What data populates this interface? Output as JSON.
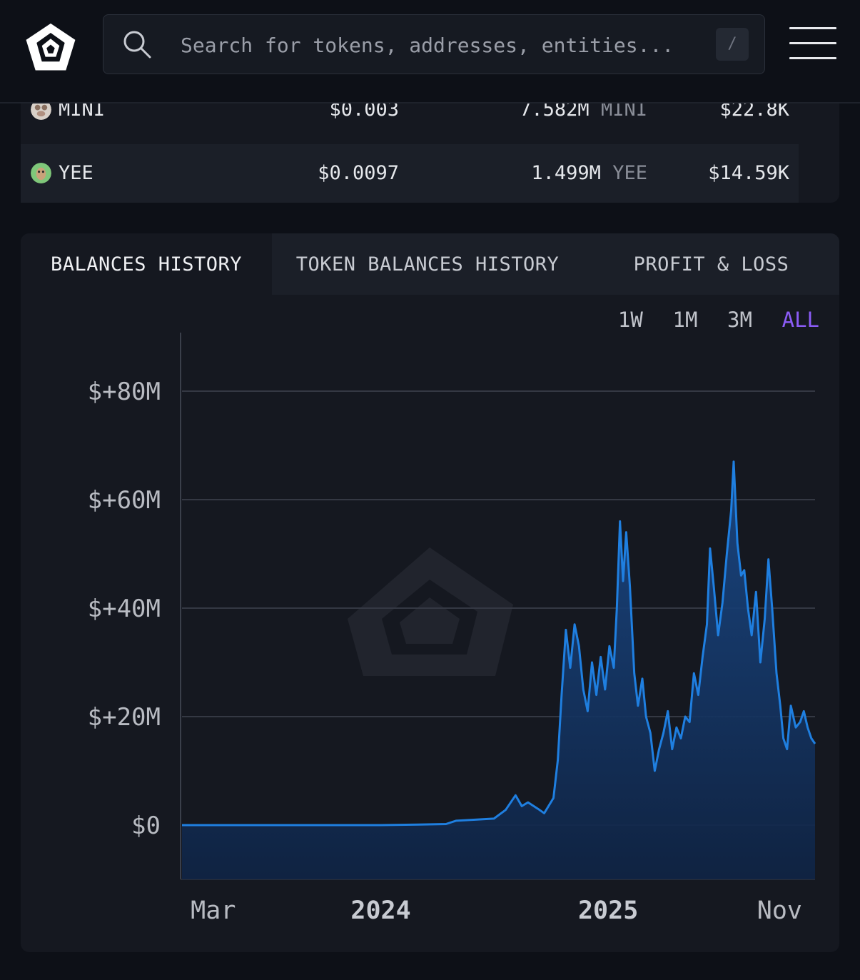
{
  "header": {
    "logo": "arkham-logo",
    "search_placeholder": "Search for tokens, addresses, entities...",
    "search_shortcut": "/",
    "menu_icon": "hamburger-menu-icon"
  },
  "tokens": [
    {
      "symbol": "MINI",
      "price": "$0.003",
      "quantity": "7.582M",
      "unit": "MINI",
      "value": "$22.8K",
      "icon": "mini-token-icon"
    },
    {
      "symbol": "YEE",
      "price": "$0.0097",
      "quantity": "1.499M",
      "unit": "YEE",
      "value": "$14.59K",
      "icon": "yee-token-icon"
    }
  ],
  "tabs": [
    {
      "label": "BALANCES HISTORY",
      "active": true
    },
    {
      "label": "TOKEN BALANCES HISTORY",
      "active": false
    },
    {
      "label": "PROFIT & LOSS",
      "active": false
    }
  ],
  "ranges": [
    {
      "label": "1W",
      "active": false
    },
    {
      "label": "1M",
      "active": false
    },
    {
      "label": "3M",
      "active": false
    },
    {
      "label": "ALL",
      "active": true
    }
  ],
  "colors": {
    "background": "#0d1017",
    "card": "#151820",
    "line": "#1f7fe0",
    "range_active": "#8b5cf6"
  },
  "chart_data": {
    "type": "area",
    "title": "",
    "xlabel": "",
    "ylabel": "",
    "ylim": [
      -10,
      90
    ],
    "y_ticks": [
      {
        "value": 80,
        "label": "$+80M"
      },
      {
        "value": 60,
        "label": "$+60M"
      },
      {
        "value": 40,
        "label": "$+40M"
      },
      {
        "value": 20,
        "label": "$+20M"
      },
      {
        "value": 0,
        "label": "$0"
      }
    ],
    "x_range": [
      "2023-02-15",
      "2025-11-30"
    ],
    "x_ticks": [
      {
        "date": "2023-03-01",
        "label": "Mar",
        "major": false
      },
      {
        "date": "2024-01-01",
        "label": "2024",
        "major": true
      },
      {
        "date": "2025-01-01",
        "label": "2025",
        "major": true
      },
      {
        "date": "2025-11-01",
        "label": "Nov",
        "major": false
      }
    ],
    "grid": true,
    "series": [
      {
        "values_unit": "USD millions",
        "points": [
          [
            "2023-02-15",
            0
          ],
          [
            "2023-06-01",
            0
          ],
          [
            "2023-10-01",
            0
          ],
          [
            "2024-01-01",
            0
          ],
          [
            "2024-03-01",
            0.1
          ],
          [
            "2024-04-15",
            0.2
          ],
          [
            "2024-05-01",
            0.8
          ],
          [
            "2024-06-01",
            1.0
          ],
          [
            "2024-07-01",
            1.2
          ],
          [
            "2024-07-20",
            2.8
          ],
          [
            "2024-08-05",
            5.5
          ],
          [
            "2024-08-15",
            3.5
          ],
          [
            "2024-08-25",
            4.2
          ],
          [
            "2024-09-10",
            3.0
          ],
          [
            "2024-09-20",
            2.2
          ],
          [
            "2024-10-05",
            5.0
          ],
          [
            "2024-10-12",
            12.0
          ],
          [
            "2024-10-18",
            24.0
          ],
          [
            "2024-10-25",
            36.0
          ],
          [
            "2024-11-01",
            29.0
          ],
          [
            "2024-11-08",
            37.0
          ],
          [
            "2024-11-15",
            33.0
          ],
          [
            "2024-11-22",
            25.0
          ],
          [
            "2024-11-29",
            21.0
          ],
          [
            "2024-12-06",
            30.0
          ],
          [
            "2024-12-13",
            24.0
          ],
          [
            "2024-12-20",
            31.0
          ],
          [
            "2024-12-27",
            25.0
          ],
          [
            "2025-01-03",
            33.0
          ],
          [
            "2025-01-10",
            29.0
          ],
          [
            "2025-01-15",
            40.0
          ],
          [
            "2025-01-20",
            56.0
          ],
          [
            "2025-01-25",
            45.0
          ],
          [
            "2025-01-30",
            54.0
          ],
          [
            "2025-02-05",
            44.0
          ],
          [
            "2025-02-12",
            28.0
          ],
          [
            "2025-02-18",
            22.0
          ],
          [
            "2025-02-25",
            27.0
          ],
          [
            "2025-03-03",
            20.0
          ],
          [
            "2025-03-10",
            17.0
          ],
          [
            "2025-03-17",
            10.0
          ],
          [
            "2025-03-24",
            14.0
          ],
          [
            "2025-03-31",
            17.0
          ],
          [
            "2025-04-07",
            21.0
          ],
          [
            "2025-04-14",
            14.0
          ],
          [
            "2025-04-21",
            18.0
          ],
          [
            "2025-04-28",
            16.0
          ],
          [
            "2025-05-05",
            20.0
          ],
          [
            "2025-05-12",
            19.0
          ],
          [
            "2025-05-19",
            28.0
          ],
          [
            "2025-05-26",
            24.0
          ],
          [
            "2025-06-02",
            31.0
          ],
          [
            "2025-06-09",
            37.0
          ],
          [
            "2025-06-14",
            51.0
          ],
          [
            "2025-06-20",
            44.0
          ],
          [
            "2025-06-27",
            35.0
          ],
          [
            "2025-07-04",
            41.0
          ],
          [
            "2025-07-11",
            50.0
          ],
          [
            "2025-07-18",
            58.0
          ],
          [
            "2025-07-22",
            67.0
          ],
          [
            "2025-07-28",
            52.0
          ],
          [
            "2025-08-03",
            46.0
          ],
          [
            "2025-08-08",
            47.0
          ],
          [
            "2025-08-14",
            40.0
          ],
          [
            "2025-08-20",
            35.0
          ],
          [
            "2025-08-27",
            43.0
          ],
          [
            "2025-09-03",
            30.0
          ],
          [
            "2025-09-10",
            38.0
          ],
          [
            "2025-09-16",
            49.0
          ],
          [
            "2025-09-22",
            40.0
          ],
          [
            "2025-09-29",
            28.0
          ],
          [
            "2025-10-05",
            22.0
          ],
          [
            "2025-10-10",
            16.0
          ],
          [
            "2025-10-16",
            14.0
          ],
          [
            "2025-10-22",
            22.0
          ],
          [
            "2025-10-30",
            18.0
          ],
          [
            "2025-11-06",
            19.0
          ],
          [
            "2025-11-12",
            21.0
          ],
          [
            "2025-11-18",
            18.0
          ],
          [
            "2025-11-24",
            16.0
          ],
          [
            "2025-11-30",
            15.0
          ]
        ]
      }
    ]
  }
}
